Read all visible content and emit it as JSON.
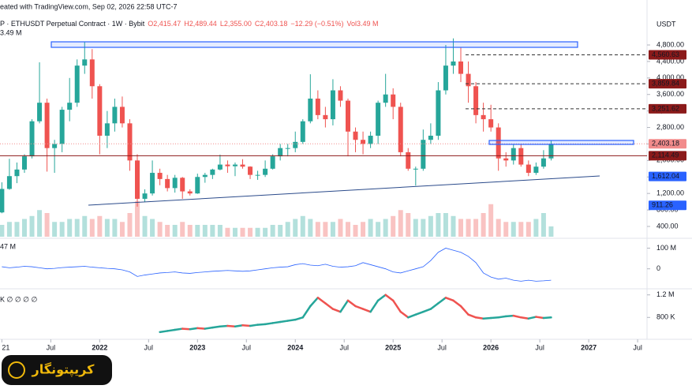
{
  "header": {
    "credit": "eated with TradingView.com, Sep 02, 2026 22:58 UTC-7",
    "symbol": "P · ETHUSDT Perpetual Contract · 1W · Bybit",
    "open": "O2,415.47",
    "high": "H2,489.44",
    "low": "L2,355.00",
    "close": "C2,403.18",
    "change": "−12.29 (−0.51%)",
    "volume": "Vol3.49 M",
    "volume_sub": "3.49 M",
    "currency": "USDT",
    "logo": "کریپتونگار"
  },
  "chart_data": [
    {
      "type": "candlestick",
      "up_color": "#26a69a",
      "down_color": "#ef5350",
      "x": [
        0,
        4,
        8,
        12,
        16,
        20,
        24,
        28,
        32,
        36,
        40,
        44,
        48,
        52,
        56,
        60,
        64,
        68,
        72,
        76,
        80,
        84,
        88,
        92,
        96,
        100,
        104,
        108,
        112,
        116,
        120,
        124,
        128,
        132,
        136,
        140,
        144,
        148,
        152,
        156,
        160,
        164,
        168,
        172,
        176,
        180,
        184,
        188,
        192,
        196,
        200,
        204,
        208,
        212,
        216,
        220,
        224,
        228,
        232,
        236,
        240,
        244,
        248,
        252,
        256,
        260,
        264,
        268,
        272,
        276,
        280,
        284,
        288,
        292
      ],
      "open": [
        740,
        1310,
        1620,
        1780,
        2100,
        2950,
        3400,
        2300,
        2400,
        3230,
        3400,
        4300,
        4450,
        3800,
        2600,
        2900,
        3300,
        2900,
        2000,
        1070,
        1200,
        1700,
        1550,
        1330,
        1580,
        1250,
        1200,
        1600,
        1650,
        1780,
        1900,
        1860,
        1900,
        1850,
        1650,
        1650,
        1800,
        2100,
        2300,
        2300,
        2450,
        2950,
        3500,
        3100,
        3000,
        3700,
        3450,
        2700,
        2500,
        2400,
        2600,
        3400,
        3600,
        3300,
        2200,
        1800,
        1800,
        2500,
        2600,
        3700,
        4300,
        4400,
        4100,
        3800,
        3100,
        3000,
        2800,
        2050,
        2000,
        2300,
        1900,
        1700,
        1850,
        2050
      ],
      "high": [
        1470,
        2040,
        1950,
        2150,
        3000,
        4380,
        3500,
        2500,
        3300,
        4000,
        4450,
        4870,
        4700,
        3850,
        3200,
        3500,
        3550,
        3000,
        2150,
        1300,
        2000,
        1800,
        1650,
        1650,
        1600,
        1300,
        1680,
        1700,
        1800,
        2140,
        2000,
        1950,
        2030,
        1860,
        1750,
        2000,
        2150,
        2400,
        2400,
        2700,
        3000,
        4090,
        3700,
        3300,
        3970,
        3800,
        3500,
        2800,
        2700,
        2700,
        3450,
        4100,
        3750,
        3400,
        2300,
        1850,
        2750,
        2900,
        3900,
        4800,
        4960,
        4750,
        4400,
        3900,
        3400,
        3350,
        2900,
        2200,
        2400,
        2400,
        2000,
        1950,
        2250,
        2489
      ],
      "low": [
        720,
        1290,
        1450,
        1700,
        2050,
        2900,
        1730,
        1700,
        2200,
        2950,
        3300,
        4100,
        3500,
        2150,
        2300,
        2700,
        2800,
        1750,
        880,
        1000,
        1150,
        1400,
        1250,
        1220,
        1070,
        1150,
        1190,
        1460,
        1550,
        1760,
        1700,
        1620,
        1800,
        1550,
        1530,
        1600,
        1780,
        2000,
        2100,
        2200,
        2400,
        2900,
        3000,
        2800,
        2850,
        3300,
        2100,
        2200,
        2150,
        2300,
        2400,
        3300,
        3000,
        2100,
        1750,
        1390,
        1750,
        2400,
        2500,
        3600,
        4100,
        3900,
        3400,
        2900,
        2700,
        2700,
        1750,
        1850,
        1900,
        1850,
        1620,
        1650,
        1800,
        2000
      ],
      "close": [
        1310,
        1620,
        1780,
        2100,
        2950,
        3400,
        2300,
        2400,
        3230,
        3400,
        4300,
        4450,
        3800,
        2600,
        2900,
        3300,
        2900,
        2000,
        1070,
        1200,
        1700,
        1550,
        1330,
        1580,
        1250,
        1200,
        1600,
        1650,
        1780,
        1900,
        1860,
        1900,
        1850,
        1650,
        1650,
        1800,
        2100,
        2300,
        2300,
        2450,
        2950,
        3500,
        3100,
        3000,
        3700,
        3450,
        2700,
        2500,
        2400,
        2600,
        3400,
        3600,
        3300,
        2200,
        1800,
        1800,
        2500,
        2600,
        3700,
        4300,
        4400,
        4100,
        3800,
        3100,
        3000,
        2800,
        2050,
        2000,
        2300,
        1900,
        1700,
        1850,
        2050,
        2403
      ],
      "volume": [
        4,
        5,
        5,
        6,
        7,
        9,
        8,
        5,
        5,
        6,
        6,
        7,
        6,
        7,
        6,
        6,
        5,
        8,
        12,
        7,
        6,
        5,
        4,
        4,
        5,
        4,
        4,
        4,
        4,
        4,
        3,
        3,
        3,
        3,
        3,
        3,
        4,
        4,
        5,
        6,
        7,
        6,
        5,
        5,
        5,
        6,
        5,
        4,
        5,
        6,
        5,
        6,
        7,
        9,
        8,
        6,
        6,
        7,
        8,
        8,
        7,
        6,
        6,
        6,
        8,
        11,
        6,
        5,
        5,
        5,
        5,
        6,
        8,
        3.49
      ],
      "xlim": [
        -1,
        343
      ],
      "ylim": [
        151,
        5508
      ],
      "xticks": [
        {
          "value": 0,
          "label": "21"
        },
        {
          "value": 26,
          "label": "Jul"
        },
        {
          "value": 52,
          "label": "2022"
        },
        {
          "value": 78,
          "label": "Jul"
        },
        {
          "value": 104,
          "label": "2023"
        },
        {
          "value": 130,
          "label": "Jul"
        },
        {
          "value": 156,
          "label": "2024"
        },
        {
          "value": 182,
          "label": "Jul"
        },
        {
          "value": 208,
          "label": "2025"
        },
        {
          "value": 234,
          "label": "Jul"
        },
        {
          "value": 260,
          "label": "2026"
        },
        {
          "value": 286,
          "label": "Jul"
        },
        {
          "value": 312,
          "label": "2027"
        },
        {
          "value": 338,
          "label": "Jul"
        }
      ],
      "yticks": [
        {
          "value": 4800,
          "label": "4,800.00"
        },
        {
          "value": 4400,
          "label": "4,400.00"
        },
        {
          "value": 4000,
          "label": "4,000.00"
        },
        {
          "value": 3600,
          "label": "3,600.00"
        },
        {
          "value": 3200,
          "label": "3,200.00"
        },
        {
          "value": 2800,
          "label": "2,800.00"
        },
        {
          "value": 2400,
          "label": "2,400.00"
        },
        {
          "value": 2000,
          "label": "2,000.00"
        },
        {
          "value": 1600,
          "label": "1,600.00"
        },
        {
          "value": 1200,
          "label": "1,200.00"
        },
        {
          "value": 800,
          "label": "800.00"
        },
        {
          "value": 400,
          "label": "400.00"
        }
      ],
      "levels": [
        {
          "value": 4560.63,
          "label": "4,560.63",
          "color": "#8b1a1a",
          "line": "dashed"
        },
        {
          "value": 3859.84,
          "label": "3,859.84",
          "color": "#8b1a1a",
          "line": "dashed"
        },
        {
          "value": 3251.62,
          "label": "3,251.62",
          "color": "#8b1a1a",
          "line": "dashed"
        },
        {
          "value": 2403.18,
          "label": "2,403.18",
          "color": "#f28b8b",
          "line": "dotted"
        },
        {
          "value": 2114.49,
          "label": "2,114.49",
          "color": "#8b1a1a",
          "line": "solid"
        },
        {
          "value": 1612.04,
          "label": "1,612.04",
          "color": "#2962ff",
          "line": "none"
        },
        {
          "value": 911.26,
          "label": "911.26",
          "color": "#2962ff",
          "line": "none"
        }
      ]
    },
    {
      "type": "line",
      "name": "47 M",
      "color": "#2962ff",
      "values": [
        10,
        5,
        8,
        12,
        10,
        5,
        0,
        2,
        6,
        8,
        10,
        12,
        8,
        5,
        2,
        0,
        -5,
        -15,
        -37,
        -30,
        -25,
        -20,
        -18,
        -15,
        -20,
        -22,
        -18,
        -15,
        -12,
        -10,
        -8,
        -10,
        -12,
        -10,
        -5,
        0,
        5,
        8,
        10,
        20,
        25,
        18,
        15,
        22,
        12,
        8,
        10,
        15,
        30,
        20,
        10,
        0,
        -15,
        -20,
        -10,
        0,
        10,
        40,
        80,
        100,
        90,
        80,
        60,
        30,
        -20,
        -40,
        -50,
        -45,
        -55,
        -60,
        -55,
        -60,
        -58,
        -55
      ],
      "ylim": [
        -89,
        140
      ],
      "yticks": [
        {
          "value": 100,
          "label": "100 M"
        },
        0
      ]
    },
    {
      "type": "line",
      "name": "K ∅ ∅ ∅ ∅",
      "up_color": "#26a69a",
      "down_color": "#ef5350",
      "values": [
        null,
        null,
        null,
        null,
        null,
        null,
        null,
        null,
        null,
        null,
        null,
        null,
        null,
        null,
        null,
        null,
        null,
        null,
        null,
        null,
        null,
        540,
        560,
        580,
        600,
        590,
        610,
        600,
        620,
        640,
        650,
        640,
        660,
        650,
        670,
        680,
        700,
        720,
        740,
        760,
        800,
        1000,
        1150,
        1050,
        950,
        900,
        1100,
        1000,
        950,
        900,
        1100,
        1200,
        1100,
        900,
        800,
        850,
        900,
        950,
        1050,
        1150,
        1100,
        1000,
        850,
        800,
        780,
        790,
        800,
        820,
        830,
        800,
        780,
        810,
        790,
        800
      ],
      "ylim": [
        440,
        1280
      ],
      "yticks": [
        {
          "value": 1200,
          "label": "1.2 M"
        },
        {
          "value": 800,
          "label": "800 K"
        }
      ]
    }
  ]
}
